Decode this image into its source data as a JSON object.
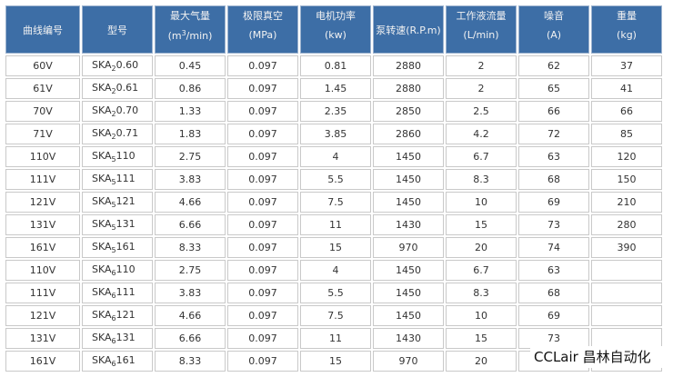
{
  "table": {
    "header": [
      {
        "label": "曲线编号"
      },
      {
        "label": "型号"
      },
      {
        "label": "最大气量",
        "unit": [
          "(m",
          "3",
          "/min)"
        ]
      },
      {
        "label": "极限真空",
        "unit": [
          "(MPa)"
        ]
      },
      {
        "label": "电机功率",
        "unit": [
          "(kw)"
        ]
      },
      {
        "label": "泵转速(R.P.m)"
      },
      {
        "label": "工作液流量",
        "unit": [
          "(L/min)"
        ]
      },
      {
        "label": "噪音",
        "unit": [
          "(A)"
        ]
      },
      {
        "label": "重量",
        "unit": [
          "(kg)"
        ]
      }
    ],
    "rows": [
      [
        "60V",
        [
          "SKA",
          "2",
          "0.60"
        ],
        "0.45",
        "0.097",
        "0.81",
        "2880",
        "2",
        "62",
        "37"
      ],
      [
        "61V",
        [
          "SKA",
          "2",
          "0.61"
        ],
        "0.86",
        "0.097",
        "1.45",
        "2880",
        "2",
        "65",
        "41"
      ],
      [
        "70V",
        [
          "SKA",
          "2",
          "0.70"
        ],
        "1.33",
        "0.097",
        "2.35",
        "2850",
        "2.5",
        "66",
        "66"
      ],
      [
        "71V",
        [
          "SKA",
          "2",
          "0.71"
        ],
        "1.83",
        "0.097",
        "3.85",
        "2860",
        "4.2",
        "72",
        "85"
      ],
      [
        "110V",
        [
          "SKA",
          "5",
          "110"
        ],
        "2.75",
        "0.097",
        "4",
        "1450",
        "6.7",
        "63",
        "120"
      ],
      [
        "111V",
        [
          "SKA",
          "5",
          "111"
        ],
        "3.83",
        "0.097",
        "5.5",
        "1450",
        "8.3",
        "68",
        "150"
      ],
      [
        "121V",
        [
          "SKA",
          "5",
          "121"
        ],
        "4.66",
        "0.097",
        "7.5",
        "1450",
        "10",
        "69",
        "210"
      ],
      [
        "131V",
        [
          "SKA",
          "5",
          "131"
        ],
        "6.66",
        "0.097",
        "11",
        "1430",
        "15",
        "73",
        "280"
      ],
      [
        "161V",
        [
          "SKA",
          "5",
          "161"
        ],
        "8.33",
        "0.097",
        "15",
        "970",
        "20",
        "74",
        "390"
      ],
      [
        "110V",
        [
          "SKA",
          "6",
          "110"
        ],
        "2.75",
        "0.097",
        "4",
        "1450",
        "6.7",
        "63",
        null
      ],
      [
        "111V",
        [
          "SKA",
          "6",
          "111"
        ],
        "3.83",
        "0.097",
        "5.5",
        "1450",
        "8.3",
        "68",
        null
      ],
      [
        "121V",
        [
          "SKA",
          "6",
          "121"
        ],
        "4.66",
        "0.097",
        "7.5",
        "1450",
        "10",
        "69",
        null
      ],
      [
        "131V",
        [
          "SKA",
          "6",
          "131"
        ],
        "6.66",
        "0.097",
        "11",
        "1430",
        "15",
        "73",
        null
      ],
      [
        "161V",
        [
          "SKA",
          "6",
          "161"
        ],
        "8.33",
        "0.097",
        "15",
        "970",
        "20",
        null,
        null
      ]
    ]
  },
  "watermark": "CCLair 昌林自动化"
}
